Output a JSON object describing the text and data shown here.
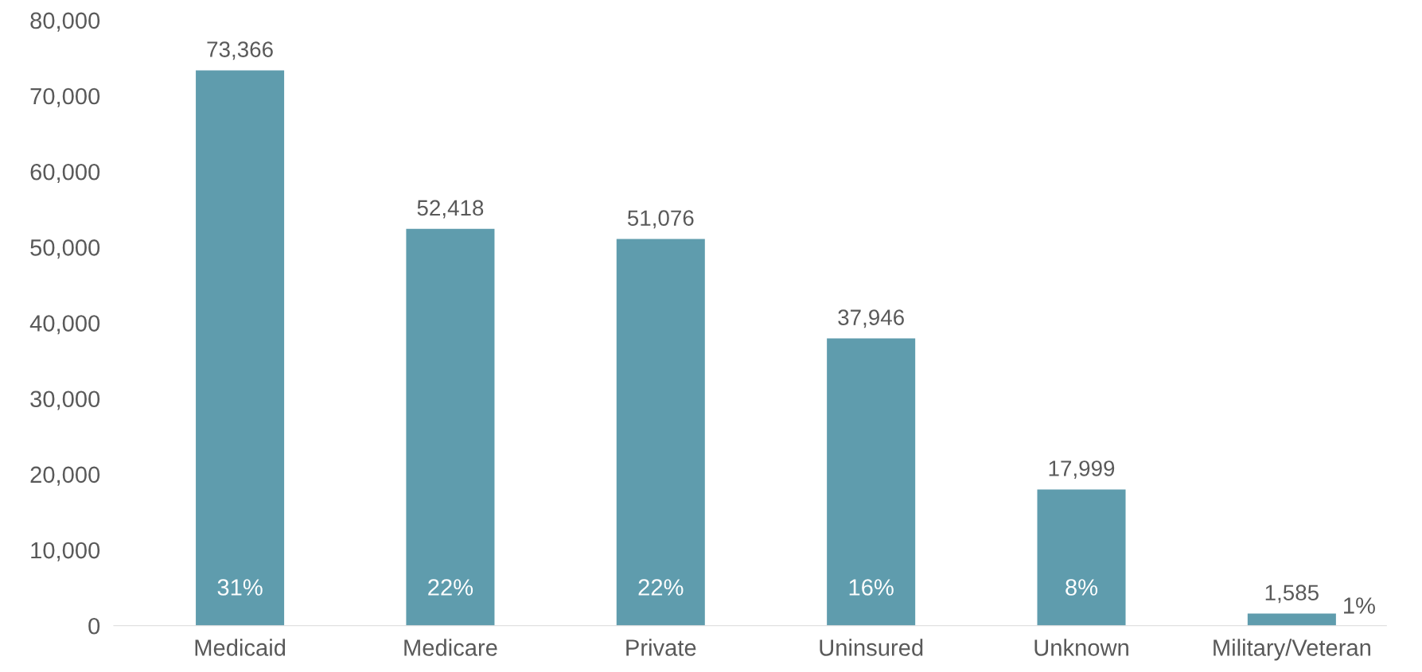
{
  "chart_data": {
    "type": "bar",
    "categories": [
      "Medicaid",
      "Medicare",
      "Private",
      "Uninsured",
      "Unknown",
      "Military/Veteran"
    ],
    "values": [
      73366,
      52418,
      51076,
      37946,
      17999,
      1585
    ],
    "color": "#5f9cad",
    "ylim": [
      0,
      80000
    ],
    "yticks": [
      {
        "value": 0,
        "label": "0"
      },
      {
        "value": 10000,
        "label": "10,000"
      },
      {
        "value": 20000,
        "label": "20,000"
      },
      {
        "value": 30000,
        "label": "30,000"
      },
      {
        "value": 40000,
        "label": "40,000"
      },
      {
        "value": 50000,
        "label": "50,000"
      },
      {
        "value": 60000,
        "label": "60,000"
      },
      {
        "value": 70000,
        "label": "70,000"
      },
      {
        "value": 80000,
        "label": "80,000"
      }
    ],
    "value_labels": [
      "73,366",
      "52,418",
      "51,076",
      "37,946",
      "17,999",
      "1,585"
    ],
    "annotations": [
      "31%",
      "22%",
      "22%",
      "16%",
      "8%",
      "1%"
    ],
    "grid": false,
    "legend": false
  }
}
